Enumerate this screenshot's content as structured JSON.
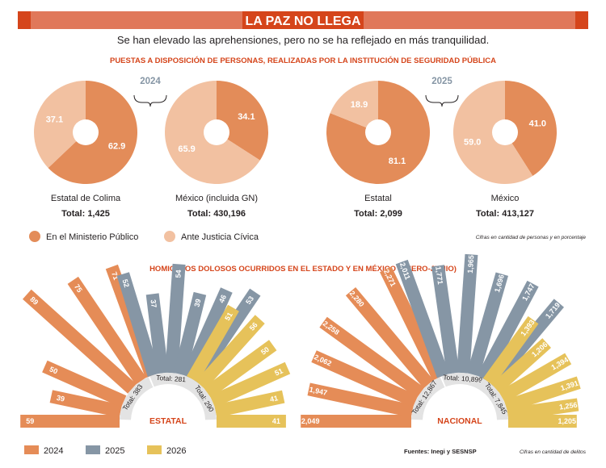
{
  "header": {
    "title": "LA PAZ NO LLEGA",
    "subtitle": "Se han elevado las aprehensiones, pero no se ha reflejado en más tranquilidad."
  },
  "colors": {
    "ministerio": "#E38C59",
    "justicia": "#F2C1A1",
    "y2024": "#E58C57",
    "y2025": "#8696A5",
    "y2026": "#E6C25A",
    "title_red": "#D5451B",
    "band": "#E0785A"
  },
  "section1": {
    "title": "PUESTAS A DISPOSICIÓN DE PERSONAS, REALIZADAS POR LA INSTITUCIÓN DE SEGURIDAD PÚBLICA",
    "note": "Cifras en cantidad de personas y en porcentaje"
  },
  "section2": {
    "title": "HOMICIDIOS DOLOSOS OCURRIDOS EN EL ESTADO Y EN MÉXICO (ENERO-JUNIO)",
    "source": "Fuentes: Inegi y SESNSP",
    "note": "Cifras en cantidad de delitos"
  },
  "legend_pie": [
    "En el Ministerio Público",
    "Ante Justicia Cívica"
  ],
  "legend_bars": [
    "2024",
    "2025",
    "2026"
  ],
  "chart_data": [
    {
      "type": "pie",
      "year_label": "2024",
      "name": "Estatal de Colima",
      "total": "Total: 1,425",
      "slices": [
        {
          "label": "En el Ministerio Público",
          "value": 62.9
        },
        {
          "label": "Ante Justicia Cívica",
          "value": 37.1
        }
      ]
    },
    {
      "type": "pie",
      "year_label": "",
      "name": "México (incluida GN)",
      "total": "Total: 430,196",
      "slices": [
        {
          "label": "En el Ministerio Público",
          "value": 34.1
        },
        {
          "label": "Ante Justicia Cívica",
          "value": 65.9
        }
      ]
    },
    {
      "type": "pie",
      "year_label": "2025",
      "name": "Estatal",
      "total": "Total: 2,099",
      "slices": [
        {
          "label": "En el Ministerio Público",
          "value": 81.1
        },
        {
          "label": "Ante Justicia Cívica",
          "value": 18.9
        }
      ]
    },
    {
      "type": "pie",
      "year_label": "",
      "name": "México",
      "total": "Total: 413,127",
      "slices": [
        {
          "label": "En el Ministerio Público",
          "value": 41.0
        },
        {
          "label": "Ante Justicia Cívica",
          "value": 59.0
        }
      ]
    },
    {
      "type": "bar",
      "layout": "radial",
      "label": "ESTATAL",
      "series": [
        {
          "name": "2024",
          "total_label": "Total: 383",
          "values": [
            59,
            39,
            50,
            89,
            75,
            71
          ]
        },
        {
          "name": "2025",
          "total_label": "Total: 281",
          "values": [
            52,
            37,
            54,
            39,
            46,
            53
          ]
        },
        {
          "name": "2026",
          "total_label": "Total: 290",
          "values": [
            51,
            56,
            50,
            51,
            41,
            41
          ]
        }
      ]
    },
    {
      "type": "bar",
      "layout": "radial",
      "label": "NACIONAL",
      "series": [
        {
          "name": "2024",
          "total_label": "Total: 12,867",
          "values": [
            2049,
            1947,
            2062,
            2258,
            2280,
            2271
          ]
        },
        {
          "name": "2025",
          "total_label": "Total: 10,899",
          "values": [
            2011,
            1771,
            1965,
            1696,
            1747,
            1719
          ]
        },
        {
          "name": "2026",
          "total_label": "Total: 7,845",
          "values": [
            1393,
            1206,
            1394,
            1391,
            1256,
            1205
          ]
        }
      ]
    }
  ]
}
